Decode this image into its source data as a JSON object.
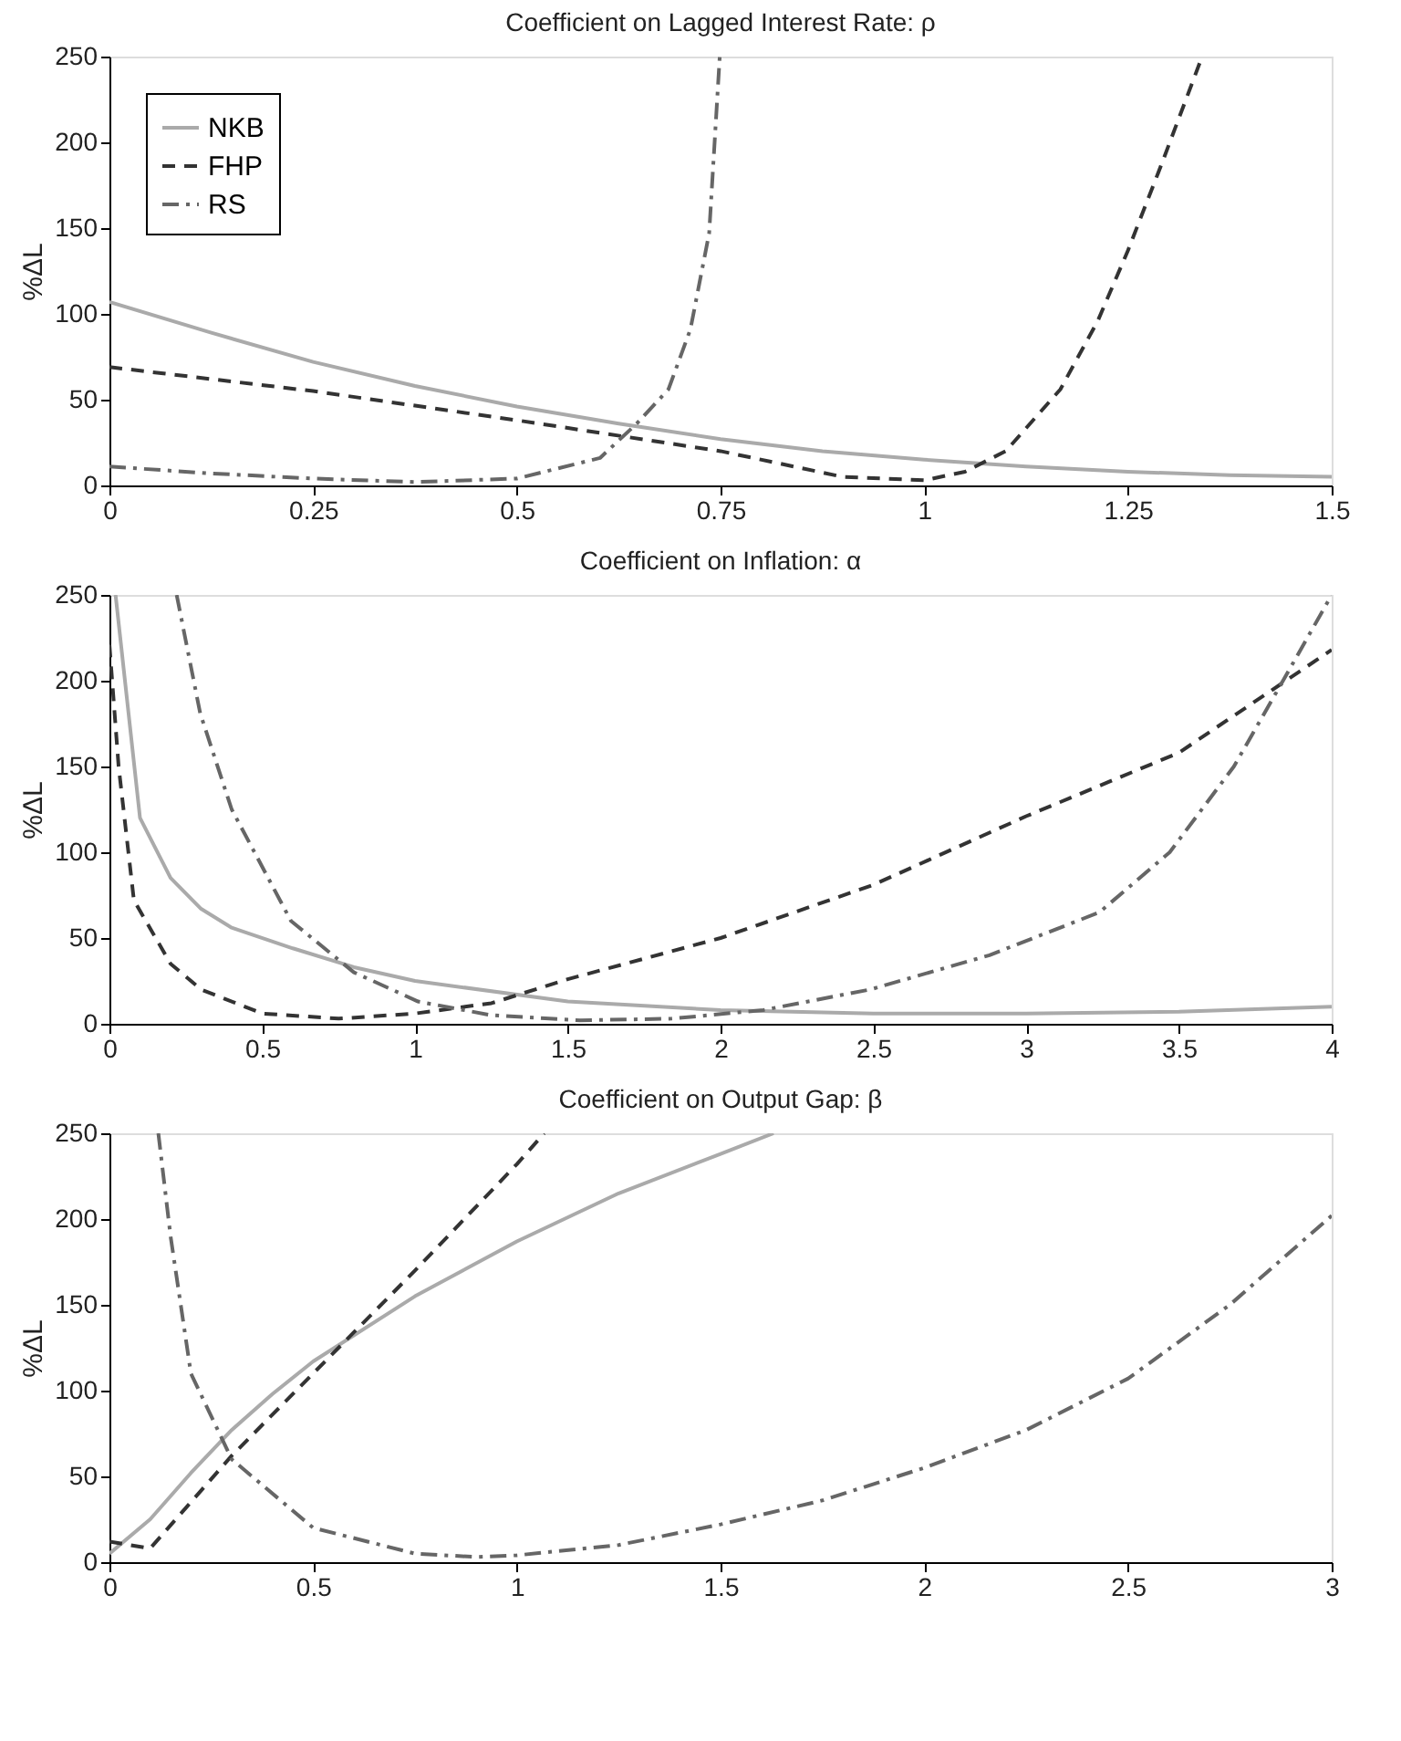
{
  "chart_data": [
    {
      "type": "line",
      "title": "Coefficient on Lagged Interest Rate: ρ",
      "ylabel": "%ΔL",
      "xlim": [
        0,
        1.5
      ],
      "xticks": [
        0,
        0.25,
        0.5,
        0.75,
        1,
        1.25,
        1.5
      ],
      "ylim": [
        0,
        250
      ],
      "yticks": [
        0,
        50,
        100,
        150,
        200,
        250
      ],
      "grid": false,
      "legend": "top left",
      "marker": "none",
      "series": [
        {
          "name": "NKB",
          "color": "#aaaaaa",
          "line_style": "solid",
          "x": [
            0,
            0.125,
            0.25,
            0.375,
            0.5,
            0.625,
            0.75,
            0.875,
            1,
            1.125,
            1.25,
            1.375,
            1.5
          ],
          "values": [
            107,
            89,
            72,
            58,
            46,
            36,
            27,
            20,
            15,
            11,
            8,
            6,
            5
          ]
        },
        {
          "name": "FHP",
          "color": "#333333",
          "line_style": "dashed",
          "x": [
            0,
            0.25,
            0.5,
            0.75,
            0.9,
            1.0,
            1.05,
            1.1,
            1.167,
            1.213,
            1.25,
            1.291,
            1.341
          ],
          "values": [
            69,
            55,
            38,
            20,
            5,
            3,
            8,
            20,
            56,
            96,
            137,
            187,
            250
          ]
        },
        {
          "name": "RS",
          "color": "#666666",
          "line_style": "dashdot",
          "x": [
            0,
            0.125,
            0.25,
            0.375,
            0.5,
            0.602,
            0.647,
            0.686,
            0.713,
            0.736,
            0.749
          ],
          "values": [
            11,
            7,
            4,
            2,
            4,
            16,
            36,
            56,
            91,
            147,
            250
          ]
        }
      ]
    },
    {
      "type": "line",
      "title": "Coefficient on Inflation: α",
      "ylabel": "%ΔL",
      "xlim": [
        0,
        4
      ],
      "xticks": [
        0,
        0.5,
        1,
        1.5,
        2,
        2.5,
        3,
        3.5,
        4
      ],
      "ylim": [
        0,
        250
      ],
      "yticks": [
        0,
        50,
        100,
        150,
        200,
        250
      ],
      "grid": false,
      "legend": false,
      "marker": "none",
      "series": [
        {
          "color": "#aaaaaa",
          "line_style": "solid",
          "x": [
            0.02,
            0.1,
            0.2,
            0.3,
            0.4,
            0.6,
            0.8,
            1,
            1.5,
            2,
            2.5,
            3,
            3.5,
            4
          ],
          "values": [
            250,
            120,
            85,
            67,
            56,
            44,
            33,
            25,
            13,
            8,
            6,
            6,
            7,
            10
          ]
        },
        {
          "color": "#333333",
          "line_style": "dashed",
          "x": [
            0,
            0.03,
            0.08,
            0.2,
            0.3,
            0.5,
            0.75,
            1,
            1.25,
            1.5,
            2,
            2.5,
            3,
            3.5,
            4
          ],
          "values": [
            221,
            150,
            72,
            35,
            20,
            6,
            3,
            6,
            12,
            26,
            50,
            81,
            121,
            158,
            218
          ]
        },
        {
          "color": "#666666",
          "line_style": "dashdot",
          "x": [
            0.22,
            0.297,
            0.4,
            0.594,
            0.8,
            1.01,
            1.25,
            1.54,
            1.84,
            2.14,
            2.49,
            2.88,
            3.24,
            3.47,
            3.68,
            3.86,
            4
          ],
          "values": [
            250,
            181,
            125,
            60,
            30,
            13,
            5,
            2,
            3,
            8,
            20,
            40,
            65,
            100,
            150,
            206,
            250
          ]
        }
      ]
    },
    {
      "type": "line",
      "title": "Coefficient on Output Gap: β",
      "ylabel": "%ΔL",
      "xlim": [
        0,
        3
      ],
      "xticks": [
        0,
        0.5,
        1,
        1.5,
        2,
        2.5,
        3
      ],
      "ylim": [
        0,
        250
      ],
      "yticks": [
        0,
        50,
        100,
        150,
        200,
        250
      ],
      "grid": false,
      "legend": false,
      "marker": "none",
      "series": [
        {
          "color": "#aaaaaa",
          "line_style": "solid",
          "x": [
            0,
            0.1,
            0.2,
            0.3,
            0.4,
            0.5,
            0.75,
            1,
            1.25,
            1.5,
            1.63
          ],
          "values": [
            5,
            25,
            52,
            77,
            98,
            117,
            155,
            187,
            215,
            238,
            250
          ]
        },
        {
          "color": "#333333",
          "line_style": "dashed",
          "x": [
            0,
            0.1,
            0.2,
            0.3,
            0.5,
            0.75,
            1,
            1.067
          ],
          "values": [
            12,
            8,
            35,
            62,
            110,
            170,
            232,
            250
          ]
        },
        {
          "color": "#666666",
          "line_style": "dashdot",
          "x": [
            0.12,
            0.15,
            0.2,
            0.3,
            0.5,
            0.75,
            0.9,
            1,
            1.25,
            1.5,
            1.75,
            2,
            2.25,
            2.5,
            2.75,
            3
          ],
          "values": [
            250,
            190,
            110,
            60,
            20,
            5,
            3,
            4,
            10,
            22,
            36,
            55,
            77,
            107,
            150,
            202
          ]
        }
      ]
    }
  ]
}
